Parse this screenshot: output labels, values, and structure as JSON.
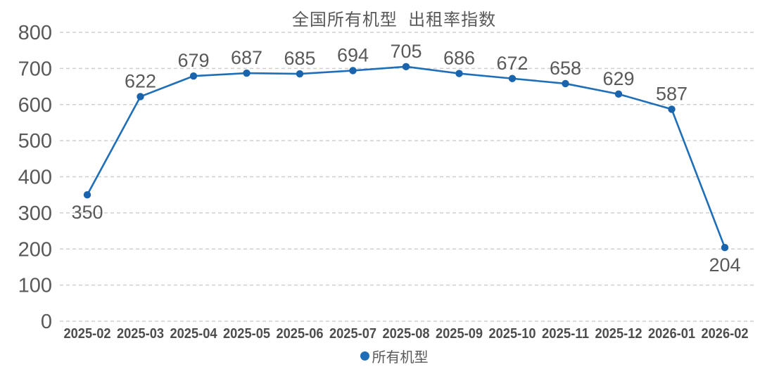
{
  "title": "全国所有机型  出租率指数",
  "legend": {
    "label": "所有机型"
  },
  "colors": {
    "line": "#1f6eb8",
    "marker": "#1a64ad",
    "grid": "#cfcfcf",
    "y_axis_text": "#595959",
    "x_axis_text": "#4d4d4d",
    "data_label_text": "#595959",
    "title_text": "#595959"
  },
  "chart_data": {
    "type": "line",
    "title": "全国所有机型 出租率指数",
    "x": [
      "2025-02",
      "2025-03",
      "2025-04",
      "2025-05",
      "2025-06",
      "2025-07",
      "2025-08",
      "2025-09",
      "2025-10",
      "2025-11",
      "2025-12",
      "2026-01",
      "2026-02"
    ],
    "series": [
      {
        "name": "所有机型",
        "values": [
          350,
          622,
          679,
          687,
          685,
          694,
          705,
          686,
          672,
          658,
          629,
          587,
          204
        ]
      }
    ],
    "xlabel": "",
    "ylabel": "",
    "ylim": [
      0,
      800
    ],
    "yticks": [
      0,
      100,
      200,
      300,
      400,
      500,
      600,
      700,
      800
    ],
    "grid": "horizontal-dashed",
    "legend_position": "bottom",
    "data_labels": true,
    "label_below_indices": [
      0,
      12
    ]
  }
}
